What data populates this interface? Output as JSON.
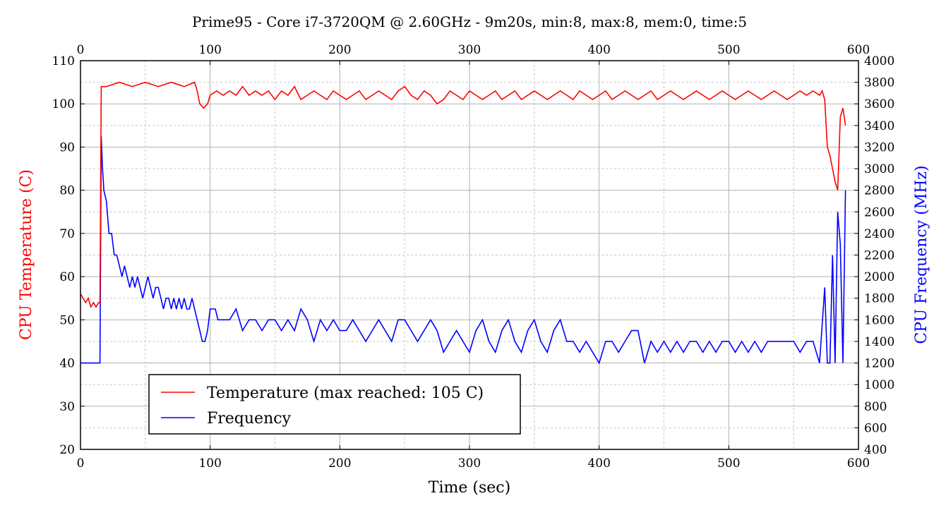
{
  "chart_data": {
    "type": "line",
    "title": "Prime95 - Core i7-3720QM @ 2.60GHz - 9m20s, min:8, max:8, mem:0, time:5",
    "xlabel": "Time (sec)",
    "ylabel_left": "CPU Temperature (C)",
    "ylabel_right": "CPU Frequency (MHz)",
    "xlim": [
      0,
      600
    ],
    "ylim_left": [
      20,
      110
    ],
    "ylim_right": [
      400,
      4000
    ],
    "x_ticks": [
      0,
      100,
      200,
      300,
      400,
      500,
      600
    ],
    "y_left_ticks": [
      20,
      30,
      40,
      50,
      60,
      70,
      80,
      90,
      100,
      110
    ],
    "y_right_ticks": [
      400,
      600,
      800,
      1000,
      1200,
      1400,
      1600,
      1800,
      2000,
      2200,
      2400,
      2600,
      2800,
      3000,
      3200,
      3400,
      3600,
      3800,
      4000
    ],
    "grid": true,
    "legend_position": "bottom-left",
    "series": [
      {
        "name": "Temperature (max reached: 105 C)",
        "axis": "left",
        "color": "#ff0000",
        "x": [
          0,
          2,
          4,
          6,
          8,
          10,
          12,
          14,
          15,
          16,
          20,
          30,
          40,
          50,
          60,
          70,
          80,
          88,
          90,
          92,
          95,
          98,
          100,
          105,
          110,
          115,
          120,
          125,
          130,
          135,
          140,
          145,
          150,
          155,
          160,
          165,
          170,
          175,
          180,
          185,
          190,
          195,
          200,
          205,
          210,
          215,
          220,
          225,
          230,
          235,
          240,
          245,
          250,
          255,
          260,
          265,
          270,
          275,
          280,
          285,
          290,
          295,
          300,
          305,
          310,
          315,
          320,
          325,
          330,
          335,
          340,
          345,
          350,
          355,
          360,
          365,
          370,
          375,
          380,
          385,
          390,
          395,
          400,
          405,
          410,
          415,
          420,
          425,
          430,
          435,
          440,
          445,
          450,
          455,
          460,
          465,
          470,
          475,
          480,
          485,
          490,
          495,
          500,
          505,
          510,
          515,
          520,
          525,
          530,
          535,
          540,
          545,
          550,
          555,
          560,
          565,
          570,
          572,
          574,
          576,
          578,
          580,
          582,
          584,
          586,
          588,
          590
        ],
        "values": [
          56,
          55,
          54,
          55,
          53,
          54,
          53,
          54,
          54,
          104,
          104,
          105,
          104,
          105,
          104,
          105,
          104,
          105,
          103,
          100,
          99,
          100,
          102,
          103,
          102,
          103,
          102,
          104,
          102,
          103,
          102,
          103,
          101,
          103,
          102,
          104,
          101,
          102,
          103,
          102,
          101,
          103,
          102,
          101,
          102,
          103,
          101,
          102,
          103,
          102,
          101,
          103,
          104,
          102,
          101,
          103,
          102,
          100,
          101,
          103,
          102,
          101,
          103,
          102,
          101,
          102,
          103,
          101,
          102,
          103,
          101,
          102,
          103,
          102,
          101,
          102,
          103,
          102,
          101,
          103,
          102,
          101,
          102,
          103,
          101,
          102,
          103,
          102,
          101,
          102,
          103,
          101,
          102,
          103,
          102,
          101,
          102,
          103,
          102,
          101,
          102,
          103,
          102,
          101,
          102,
          103,
          102,
          101,
          102,
          103,
          102,
          101,
          102,
          103,
          102,
          103,
          102,
          103,
          101,
          90,
          88,
          85,
          82,
          80,
          97,
          99,
          95
        ]
      },
      {
        "name": "Frequency",
        "axis": "right",
        "color": "#0000ff",
        "x": [
          0,
          14,
          15,
          16,
          17,
          18,
          20,
          22,
          24,
          26,
          28,
          30,
          32,
          34,
          36,
          38,
          40,
          42,
          44,
          46,
          48,
          50,
          52,
          54,
          56,
          58,
          60,
          62,
          64,
          66,
          68,
          70,
          72,
          74,
          76,
          78,
          80,
          82,
          84,
          86,
          88,
          90,
          92,
          94,
          96,
          98,
          100,
          102,
          104,
          106,
          110,
          115,
          120,
          125,
          130,
          135,
          140,
          145,
          150,
          155,
          160,
          165,
          170,
          175,
          180,
          185,
          190,
          195,
          200,
          205,
          210,
          215,
          220,
          225,
          230,
          235,
          240,
          245,
          250,
          255,
          260,
          265,
          270,
          275,
          280,
          285,
          290,
          295,
          300,
          305,
          310,
          315,
          320,
          325,
          330,
          335,
          340,
          345,
          350,
          355,
          360,
          365,
          370,
          375,
          380,
          385,
          390,
          395,
          400,
          405,
          410,
          415,
          420,
          425,
          430,
          435,
          440,
          445,
          450,
          455,
          460,
          465,
          470,
          475,
          480,
          485,
          490,
          495,
          500,
          505,
          510,
          515,
          520,
          525,
          530,
          535,
          540,
          545,
          550,
          555,
          560,
          565,
          570,
          574,
          576,
          578,
          580,
          582,
          584,
          586,
          588,
          590
        ],
        "values": [
          1200,
          1200,
          1200,
          3300,
          3000,
          2800,
          2700,
          2400,
          2400,
          2200,
          2200,
          2100,
          2000,
          2100,
          2000,
          1900,
          2000,
          1900,
          2000,
          1900,
          1800,
          1900,
          2000,
          1900,
          1800,
          1900,
          1900,
          1800,
          1700,
          1800,
          1800,
          1700,
          1800,
          1700,
          1800,
          1700,
          1800,
          1700,
          1700,
          1800,
          1700,
          1600,
          1500,
          1400,
          1400,
          1500,
          1700,
          1700,
          1700,
          1600,
          1600,
          1600,
          1700,
          1500,
          1600,
          1600,
          1500,
          1600,
          1600,
          1500,
          1600,
          1500,
          1700,
          1600,
          1400,
          1600,
          1500,
          1600,
          1500,
          1500,
          1600,
          1500,
          1400,
          1500,
          1600,
          1500,
          1400,
          1600,
          1600,
          1500,
          1400,
          1500,
          1600,
          1500,
          1300,
          1400,
          1500,
          1400,
          1300,
          1500,
          1600,
          1400,
          1300,
          1500,
          1600,
          1400,
          1300,
          1500,
          1600,
          1400,
          1300,
          1500,
          1600,
          1400,
          1400,
          1300,
          1400,
          1300,
          1200,
          1400,
          1400,
          1300,
          1400,
          1500,
          1500,
          1200,
          1400,
          1300,
          1400,
          1300,
          1400,
          1300,
          1400,
          1400,
          1300,
          1400,
          1300,
          1400,
          1400,
          1300,
          1400,
          1300,
          1400,
          1300,
          1400,
          1400,
          1400,
          1400,
          1400,
          1300,
          1400,
          1400,
          1200,
          1900,
          1200,
          1200,
          2200,
          1200,
          2600,
          2300,
          1200,
          2800
        ]
      }
    ]
  },
  "legend": {
    "temperature_label": "Temperature (max reached: 105 C)",
    "frequency_label": "Frequency"
  },
  "colors": {
    "temperature": "#ff0000",
    "frequency": "#0000ff",
    "grid_major": "#b0b0b0",
    "grid_minor": "#c8c8c8"
  }
}
